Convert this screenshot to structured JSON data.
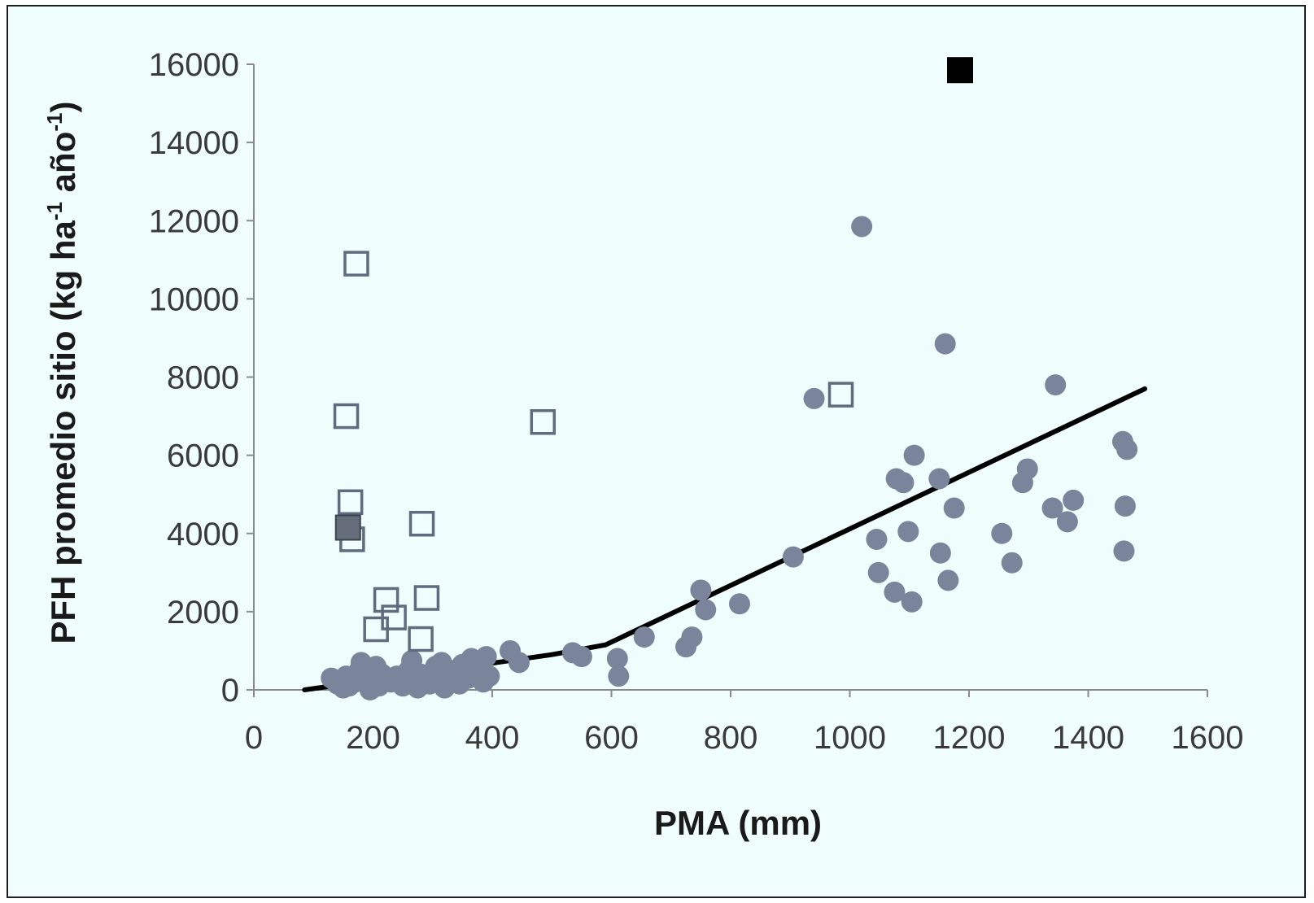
{
  "chart_data": {
    "type": "scatter",
    "xlabel": "PMA (mm)",
    "ylabel": {
      "main": "PFH promedio sitio (kg ha",
      "sup1": "-1",
      "mid": " año",
      "sup2": "-1",
      "end": ")"
    },
    "xlim": [
      0,
      1600
    ],
    "ylim": [
      0,
      16000
    ],
    "x_ticks": [
      0,
      200,
      400,
      600,
      800,
      1000,
      1200,
      1400,
      1600
    ],
    "y_ticks": [
      0,
      2000,
      4000,
      6000,
      8000,
      10000,
      12000,
      14000,
      16000
    ],
    "grid": false,
    "legend": "none",
    "colors": {
      "circle": "#7a859b",
      "open_square_stroke": "#5f6b7e",
      "filled_gray_square": "#656d7b",
      "black_square": "#000000",
      "trend_line": "#000000",
      "axis": "#8a8a8a"
    },
    "series": [
      {
        "marker": "circle-filled",
        "points": [
          [
            130,
            300
          ],
          [
            140,
            150
          ],
          [
            150,
            50
          ],
          [
            155,
            350
          ],
          [
            160,
            100
          ],
          [
            170,
            200
          ],
          [
            175,
            450
          ],
          [
            180,
            700
          ],
          [
            185,
            300
          ],
          [
            190,
            500
          ],
          [
            195,
            0
          ],
          [
            200,
            250
          ],
          [
            205,
            600
          ],
          [
            210,
            100
          ],
          [
            215,
            400
          ],
          [
            220,
            300
          ],
          [
            230,
            200
          ],
          [
            240,
            350
          ],
          [
            250,
            100
          ],
          [
            255,
            300
          ],
          [
            260,
            500
          ],
          [
            265,
            750
          ],
          [
            270,
            250
          ],
          [
            275,
            50
          ],
          [
            280,
            400
          ],
          [
            290,
            300
          ],
          [
            295,
            150
          ],
          [
            300,
            450
          ],
          [
            305,
            600
          ],
          [
            310,
            200
          ],
          [
            315,
            700
          ],
          [
            320,
            50
          ],
          [
            325,
            350
          ],
          [
            330,
            500
          ],
          [
            340,
            400
          ],
          [
            345,
            150
          ],
          [
            350,
            650
          ],
          [
            360,
            300
          ],
          [
            365,
            800
          ],
          [
            370,
            450
          ],
          [
            380,
            550
          ],
          [
            385,
            200
          ],
          [
            390,
            850
          ],
          [
            395,
            350
          ],
          [
            430,
            1000
          ],
          [
            445,
            700
          ],
          [
            535,
            950
          ],
          [
            550,
            850
          ],
          [
            610,
            800
          ],
          [
            612,
            350
          ],
          [
            655,
            1350
          ],
          [
            725,
            1100
          ],
          [
            735,
            1350
          ],
          [
            750,
            2550
          ],
          [
            758,
            2050
          ],
          [
            815,
            2200
          ],
          [
            905,
            3400
          ],
          [
            940,
            7450
          ],
          [
            1020,
            11850
          ],
          [
            1045,
            3850
          ],
          [
            1048,
            3000
          ],
          [
            1075,
            2500
          ],
          [
            1078,
            5400
          ],
          [
            1090,
            5300
          ],
          [
            1098,
            4050
          ],
          [
            1104,
            2250
          ],
          [
            1108,
            6000
          ],
          [
            1150,
            5400
          ],
          [
            1152,
            3500
          ],
          [
            1160,
            8850
          ],
          [
            1165,
            2800
          ],
          [
            1175,
            4650
          ],
          [
            1255,
            4000
          ],
          [
            1272,
            3250
          ],
          [
            1290,
            5300
          ],
          [
            1298,
            5650
          ],
          [
            1340,
            4650
          ],
          [
            1345,
            7800
          ],
          [
            1365,
            4300
          ],
          [
            1375,
            4850
          ],
          [
            1458,
            6350
          ],
          [
            1460,
            3550
          ],
          [
            1462,
            4700
          ],
          [
            1465,
            6150
          ]
        ]
      },
      {
        "marker": "square-open",
        "points": [
          [
            155,
            7000
          ],
          [
            162,
            4800
          ],
          [
            165,
            3850
          ],
          [
            172,
            10900
          ],
          [
            205,
            1550
          ],
          [
            222,
            2300
          ],
          [
            235,
            1850
          ],
          [
            280,
            1300
          ],
          [
            282,
            4250
          ],
          [
            290,
            2350
          ],
          [
            485,
            6850
          ],
          [
            985,
            7550
          ]
        ]
      },
      {
        "marker": "square-filled-gray",
        "points": [
          [
            158,
            4150
          ]
        ]
      },
      {
        "marker": "square-filled-black",
        "points": [
          [
            1185,
            15850
          ]
        ]
      },
      {
        "marker": "line",
        "points": [
          [
            85,
            0
          ],
          [
            500,
            900
          ],
          [
            590,
            1150
          ],
          [
            1495,
            7700
          ]
        ]
      }
    ]
  }
}
